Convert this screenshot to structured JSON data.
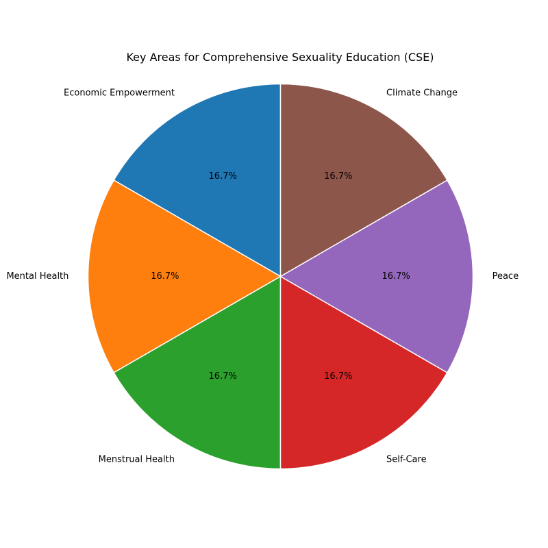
{
  "chart_data": {
    "type": "pie",
    "title": "Key Areas for Comprehensive Sexuality Education (CSE)",
    "categories": [
      "Economic Empowerment",
      "Mental Health",
      "Menstrual Health",
      "Self-Care",
      "Peace",
      "Climate Change"
    ],
    "values": [
      1,
      1,
      1,
      1,
      1,
      1
    ],
    "percent_labels": [
      "16.7%",
      "16.7%",
      "16.7%",
      "16.7%",
      "16.7%",
      "16.7%"
    ],
    "colors": [
      "#1f77b4",
      "#ff7f0e",
      "#2ca02c",
      "#d62728",
      "#9467bd",
      "#8c564b"
    ],
    "start_angle_deg": 90,
    "direction": "counterclockwise"
  }
}
